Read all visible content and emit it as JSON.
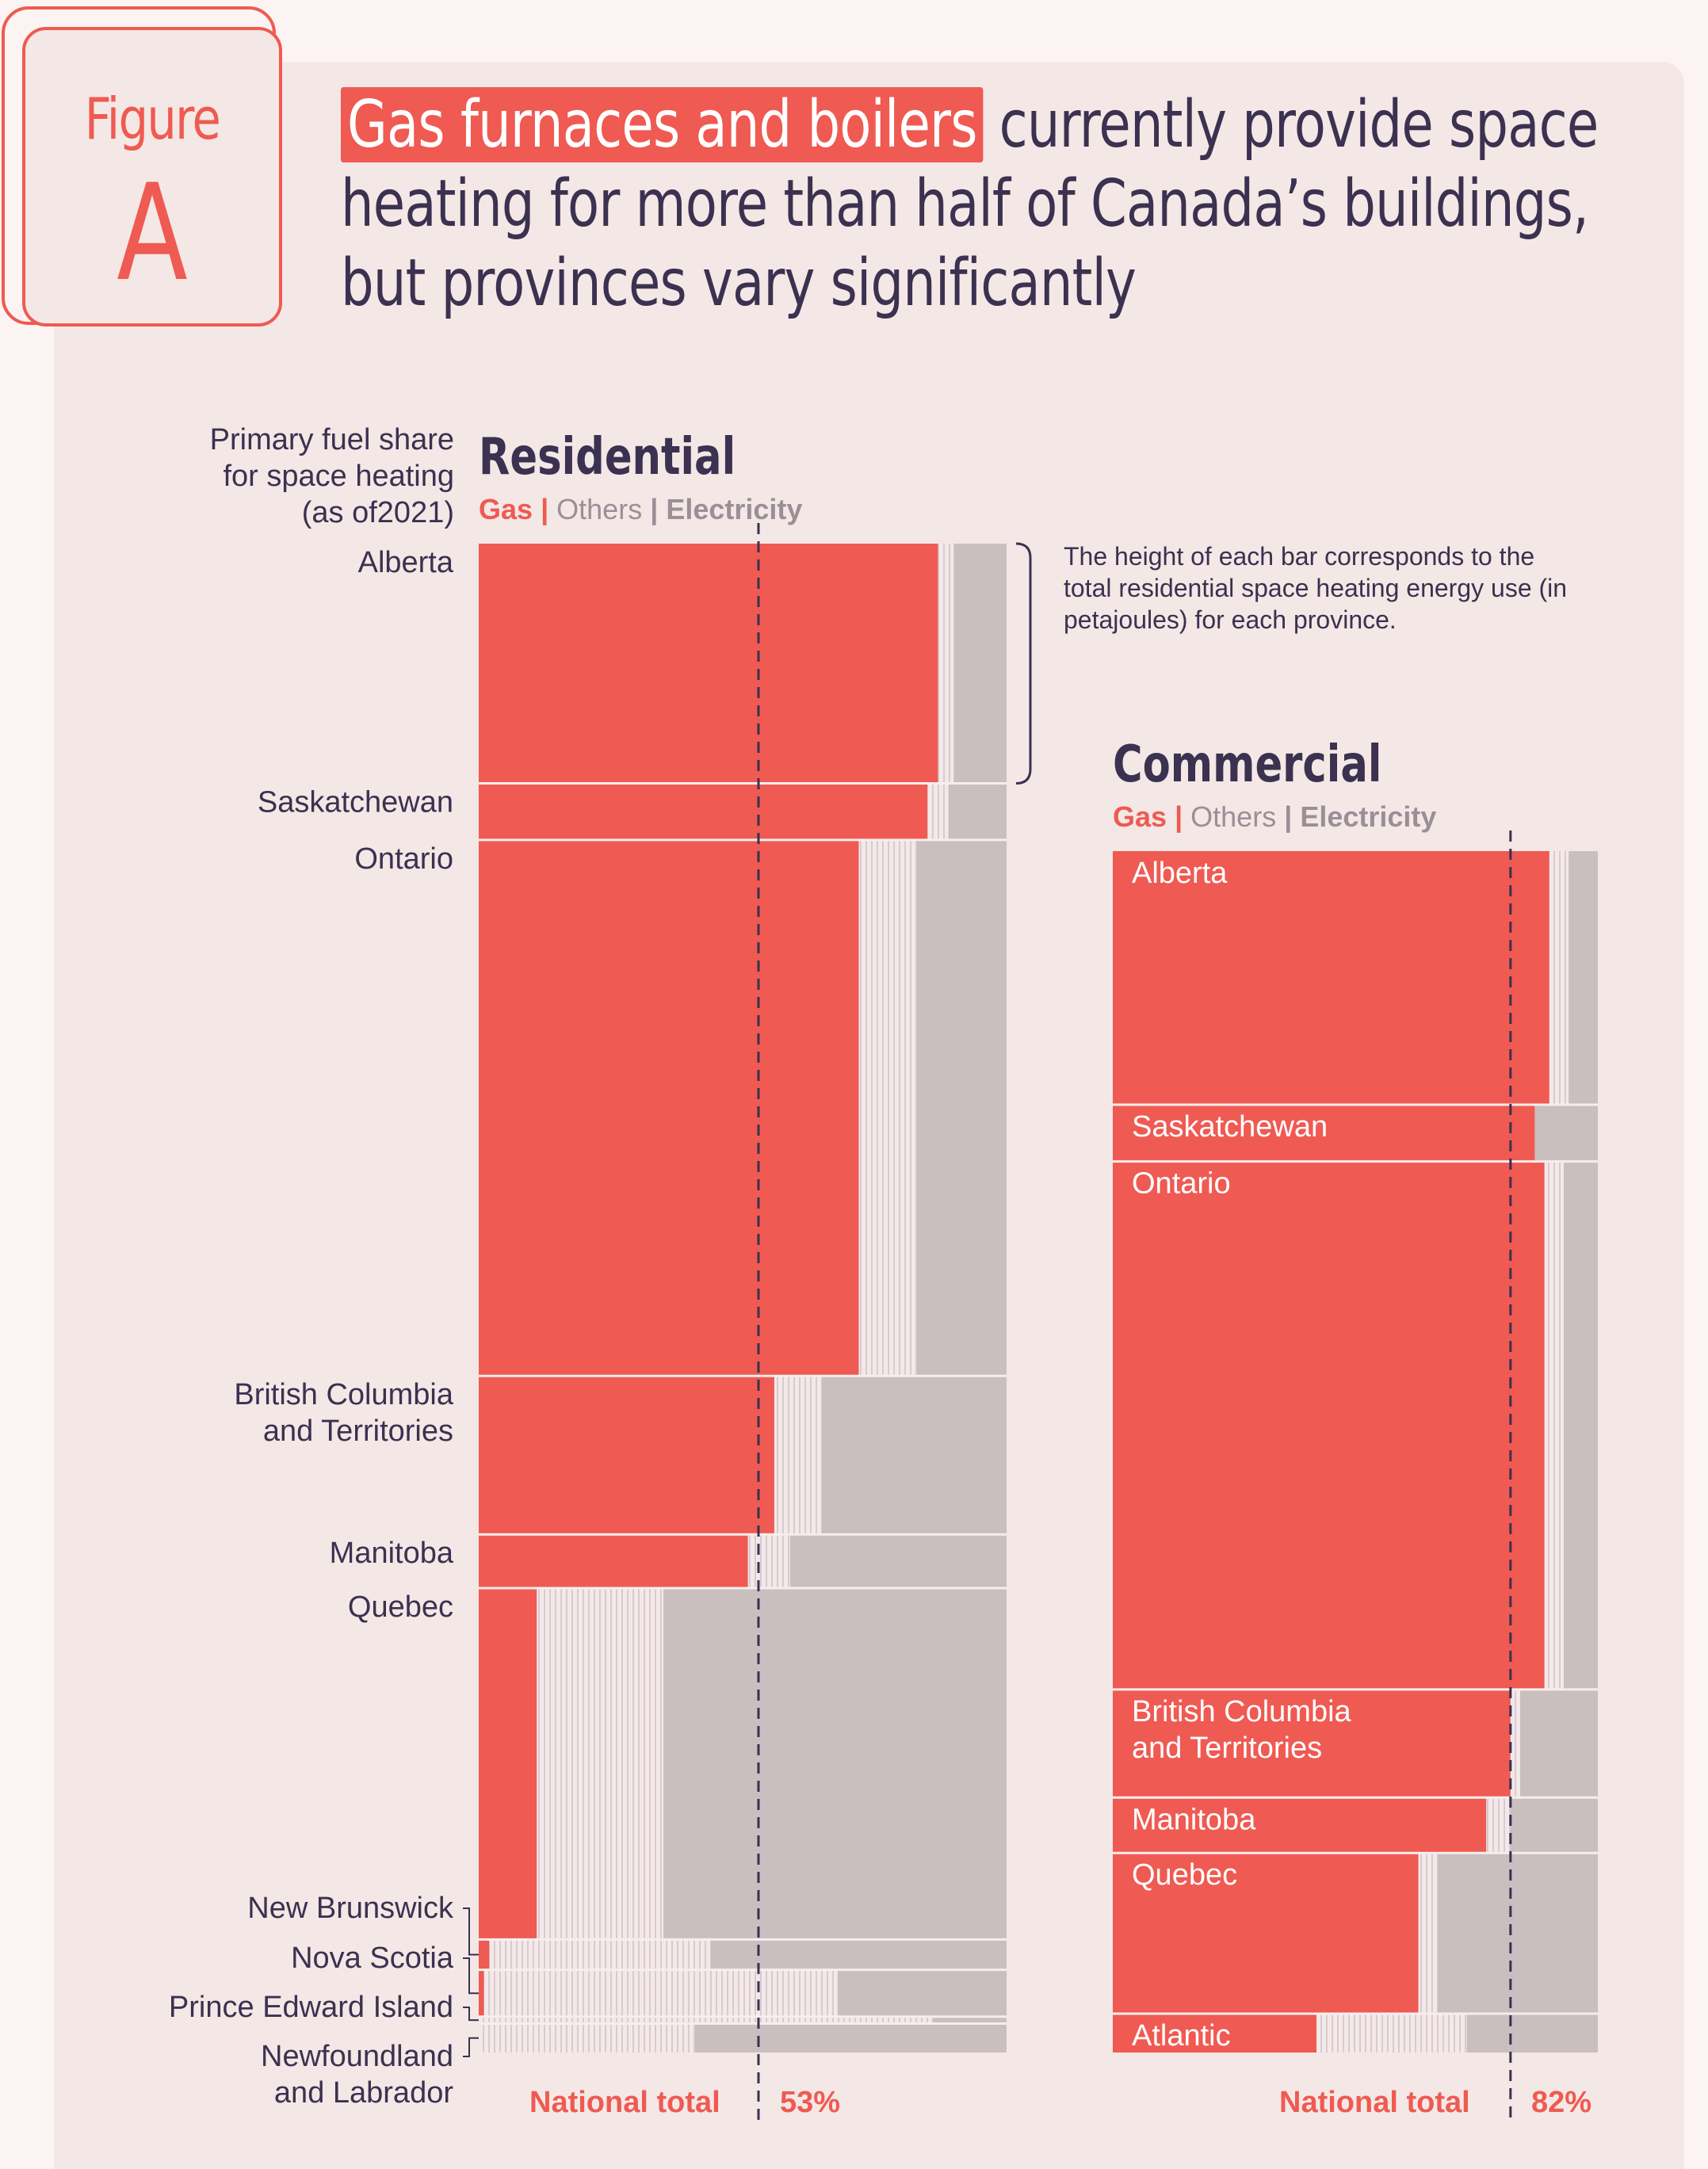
{
  "figure": {
    "word": "Figure",
    "letter": "A"
  },
  "title": {
    "highlight": "Gas furnaces and boilers",
    "line1_rest": " currently provide space",
    "line2": "heating for more than half of Canada’s buildings,",
    "line3": "but provinces vary significantly"
  },
  "side_note": [
    "Primary fuel share",
    "for space heating",
    "(as of2021)"
  ],
  "bar_note": "The height of each bar corresponds to the total residential space heating energy use (in petajoules) for each province.",
  "legend": {
    "gas": "Gas",
    "others": "Others",
    "electricity": "Electricity",
    "sep": "|"
  },
  "colors": {
    "gas": "#ef5a52",
    "others": "#f1e3e4",
    "electricity": "#c9bfbf",
    "text": "#3b3150"
  },
  "chart_data": [
    {
      "type": "bar",
      "title": "Residential",
      "x_label": "Primary fuel share for space heating (as of2021)",
      "national_total_label": "National total",
      "national_total_value": "53%",
      "national_total_pct": 53,
      "categories": [
        "Alberta",
        "Saskatchewan",
        "Ontario",
        "British  Columbia\nand Territories",
        "Manitoba",
        "Quebec",
        "New  Brunswick",
        "Nova Scotia",
        "Prince Edward Island",
        "Newfoundland\nand Labrador"
      ],
      "relative_height": [
        174,
        41,
        389,
        115,
        39,
        255,
        22,
        34,
        5,
        21
      ],
      "series": [
        {
          "name": "Gas",
          "values": [
            87,
            85,
            72,
            56,
            51,
            11,
            2,
            1,
            0,
            0
          ]
        },
        {
          "name": "Others",
          "values": [
            3,
            4,
            11,
            9,
            8,
            24,
            42,
            67,
            86,
            41
          ]
        },
        {
          "name": "Electricity",
          "values": [
            10,
            11,
            17,
            35,
            41,
            65,
            56,
            32,
            14,
            59
          ]
        }
      ]
    },
    {
      "type": "bar",
      "title": "Commercial",
      "national_total_label": "National total",
      "national_total_value": "82%",
      "national_total_pct": 82,
      "categories": [
        "Alberta",
        "Saskatchewan",
        "Ontario",
        "British Columbia\nand Territories",
        "Manitoba",
        "Quebec",
        "Atlantic"
      ],
      "relative_height": [
        183,
        41,
        381,
        78,
        40,
        116,
        28
      ],
      "series": [
        {
          "name": "Gas",
          "values": [
            90,
            87,
            89,
            82,
            77,
            63,
            42
          ]
        },
        {
          "name": "Others",
          "values": [
            4,
            0,
            4,
            2,
            5,
            4,
            31
          ]
        },
        {
          "name": "Electricity",
          "values": [
            6,
            13,
            7,
            16,
            18,
            33,
            27
          ]
        }
      ]
    }
  ]
}
